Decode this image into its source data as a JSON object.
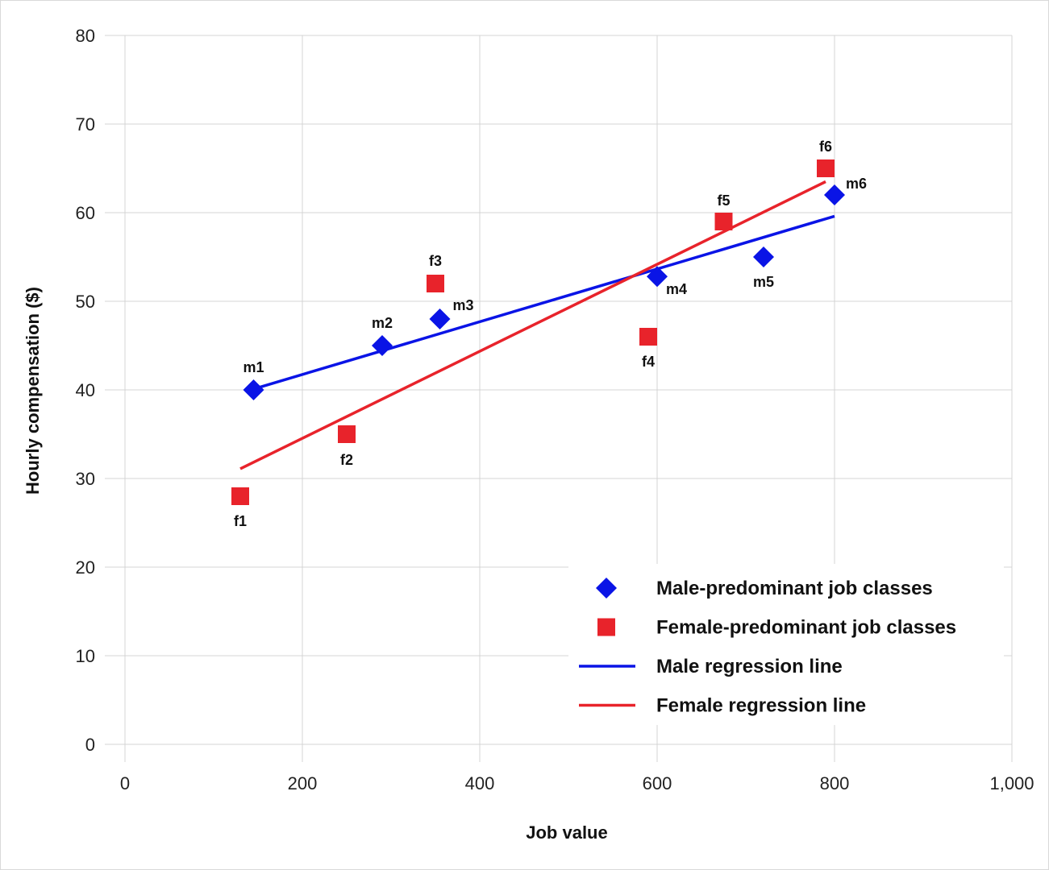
{
  "chart_data": {
    "type": "scatter",
    "title": "",
    "xlabel": "Job value",
    "ylabel": "Hourly compensation ($)",
    "xlim": [
      0,
      1000
    ],
    "ylim": [
      0,
      80
    ],
    "x_ticks": [
      0,
      200,
      400,
      600,
      800,
      1000
    ],
    "x_tick_labels": [
      "0",
      "200",
      "400",
      "600",
      "800",
      "1,000"
    ],
    "y_ticks": [
      0,
      10,
      20,
      30,
      40,
      50,
      60,
      70,
      80
    ],
    "y_tick_labels": [
      "0",
      "10",
      "20",
      "30",
      "40",
      "50",
      "60",
      "70",
      "80"
    ],
    "grid": true,
    "legend_position": "bottom-right",
    "series": [
      {
        "name": "Male-predominant job classes",
        "marker": "diamond",
        "color": "#0a14e6",
        "points": [
          {
            "label": "m1",
            "x": 145,
            "y": 40
          },
          {
            "label": "m2",
            "x": 290,
            "y": 45
          },
          {
            "label": "m3",
            "x": 355,
            "y": 48
          },
          {
            "label": "m4",
            "x": 600,
            "y": 52.8
          },
          {
            "label": "m5",
            "x": 720,
            "y": 55
          },
          {
            "label": "m6",
            "x": 800,
            "y": 62
          }
        ]
      },
      {
        "name": "Female-predominant job classes",
        "marker": "square",
        "color": "#e8232b",
        "points": [
          {
            "label": "f1",
            "x": 130,
            "y": 28
          },
          {
            "label": "f2",
            "x": 250,
            "y": 35
          },
          {
            "label": "f3",
            "x": 350,
            "y": 52
          },
          {
            "label": "f4",
            "x": 590,
            "y": 46
          },
          {
            "label": "f5",
            "x": 675,
            "y": 59
          },
          {
            "label": "f6",
            "x": 790,
            "y": 65
          }
        ]
      }
    ],
    "lines": [
      {
        "name": "Male regression line",
        "color": "#0a14e6",
        "x": [
          145,
          800
        ],
        "y": [
          40.1,
          59.6
        ]
      },
      {
        "name": "Female regression line",
        "color": "#e8232b",
        "x": [
          130,
          790
        ],
        "y": [
          31.1,
          63.5
        ]
      }
    ]
  }
}
